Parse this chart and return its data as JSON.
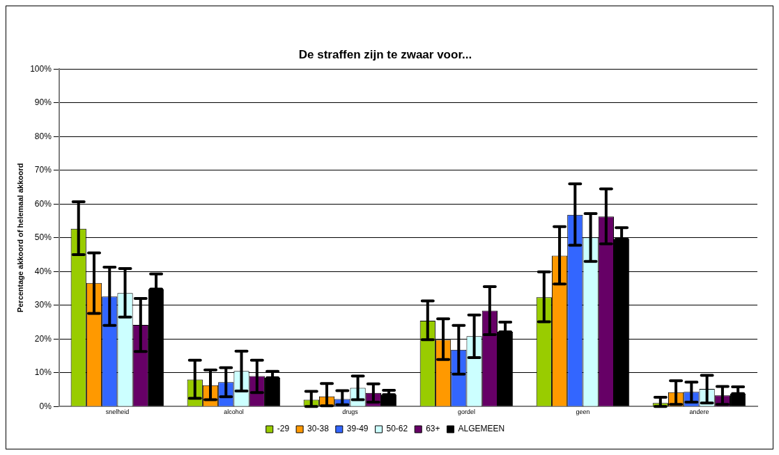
{
  "chart_data": {
    "type": "bar",
    "title": "De straffen zijn te zwaar voor...",
    "ylabel": "Percentage akkoord of helemaal akkoord",
    "categories": [
      "snelheid",
      "alcohol",
      "drugs",
      "gordel",
      "geen",
      "andere"
    ],
    "series": [
      {
        "name": "-29",
        "color": "#99cc00",
        "values": [
          52.7,
          8.0,
          2.0,
          25.4,
          32.4,
          1.0
        ],
        "errors": [
          [
            45.0,
            60.7
          ],
          [
            2.4,
            13.7
          ],
          [
            0,
            4.5
          ],
          [
            19.8,
            31.3
          ],
          [
            25.1,
            39.9
          ],
          [
            0,
            2.7
          ]
        ]
      },
      {
        "name": "30-38",
        "color": "#ff9900",
        "values": [
          36.6,
          6.3,
          3.0,
          19.8,
          44.7,
          4.2
        ],
        "errors": [
          [
            27.6,
            45.5
          ],
          [
            2.0,
            10.8
          ],
          [
            0.2,
            6.8
          ],
          [
            13.9,
            26.0
          ],
          [
            36.3,
            53.3
          ],
          [
            0.6,
            7.6
          ]
        ]
      },
      {
        "name": "39-49",
        "color": "#3366ff",
        "values": [
          32.6,
          7.2,
          2.2,
          16.8,
          56.8,
          4.3
        ],
        "errors": [
          [
            24.0,
            41.3
          ],
          [
            2.9,
            11.5
          ],
          [
            0.5,
            4.7
          ],
          [
            9.6,
            24.0
          ],
          [
            47.8,
            66.0
          ],
          [
            1.3,
            7.2
          ]
        ]
      },
      {
        "name": "50-62",
        "color": "#ccffff",
        "values": [
          33.6,
          10.5,
          5.5,
          20.8,
          50.1,
          5.2
        ],
        "errors": [
          [
            26.5,
            40.9
          ],
          [
            4.6,
            16.4
          ],
          [
            2.0,
            9.0
          ],
          [
            14.5,
            27.1
          ],
          [
            43.0,
            57.2
          ],
          [
            1.0,
            9.2
          ]
        ]
      },
      {
        "name": "63+",
        "color": "#660066",
        "values": [
          24.2,
          9.0,
          4.0,
          28.4,
          56.3,
          3.3
        ],
        "errors": [
          [
            16.3,
            32.0
          ],
          [
            4.1,
            13.7
          ],
          [
            1.3,
            6.7
          ],
          [
            21.3,
            35.5
          ],
          [
            48.2,
            64.5
          ],
          [
            0.6,
            5.9
          ]
        ]
      },
      {
        "name": "ALGEMEEN",
        "color": "#000000",
        "values": [
          34.8,
          8.5,
          3.5,
          22.1,
          49.7,
          3.8
        ],
        "errors": [
          [
            34.8,
            39.3
          ],
          [
            8.5,
            10.4
          ],
          [
            3.5,
            4.8
          ],
          [
            22.1,
            25.0
          ],
          [
            49.7,
            53.0
          ],
          [
            3.8,
            5.8
          ]
        ]
      }
    ],
    "ylim": [
      0,
      100
    ],
    "yticks": [
      {
        "value": 0,
        "label": "0%"
      },
      {
        "value": 10,
        "label": "10%"
      },
      {
        "value": 20,
        "label": "20%"
      },
      {
        "value": 30,
        "label": "30%"
      },
      {
        "value": 40,
        "label": "40%"
      },
      {
        "value": 50,
        "label": "50%"
      },
      {
        "value": 60,
        "label": "60%"
      },
      {
        "value": 70,
        "label": "70%"
      },
      {
        "value": 80,
        "label": "80%"
      },
      {
        "value": 90,
        "label": "90%"
      },
      {
        "value": 100,
        "label": "100%"
      }
    ],
    "grid": "y",
    "legend": "bottom"
  }
}
